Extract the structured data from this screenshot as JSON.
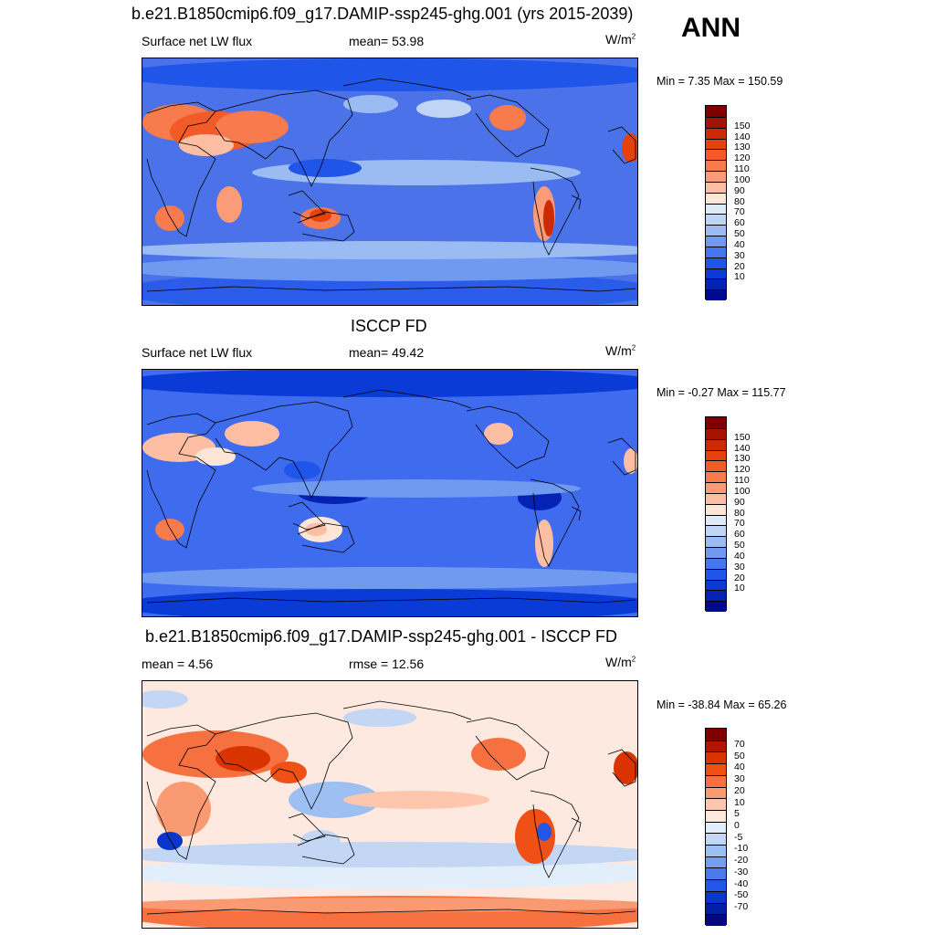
{
  "season": "ANN",
  "panels": [
    {
      "title": "b.e21.B1850cmip6.f09_g17.DAMIP-ssp245-ghg.001 (yrs 2015-2039)",
      "left_text": "Surface net LW flux",
      "center_text": "mean=  53.98",
      "units": "W/m",
      "units_sup": "2",
      "minmax": "Min =   7.35 Max = 150.59",
      "colorbar_labels": [
        "150",
        "140",
        "130",
        "120",
        "110",
        "100",
        "90",
        "80",
        "70",
        "60",
        "50",
        "40",
        "30",
        "20",
        "10"
      ],
      "colorbar_colors": [
        "#7f0000",
        "#a51200",
        "#cc2a00",
        "#e5410b",
        "#f25a28",
        "#f77b4d",
        "#fb9b78",
        "#fdbea3",
        "#fee6d6",
        "#deebf7",
        "#c0d5f5",
        "#9bbbf3",
        "#6f9af0",
        "#4676ee",
        "#1f55e8",
        "#0b3bd6",
        "#0422b4",
        "#000a8e"
      ],
      "colorbar_label_map": "labels sit on boundaries between colors",
      "map_mood": "model"
    },
    {
      "title": "ISCCP FD",
      "left_text": "Surface net LW flux",
      "center_text": "mean=  49.42",
      "units": "W/m",
      "units_sup": "2",
      "minmax": "Min =  -0.27 Max = 115.77",
      "colorbar_labels": [
        "150",
        "140",
        "130",
        "120",
        "110",
        "100",
        "90",
        "80",
        "70",
        "60",
        "50",
        "40",
        "30",
        "20",
        "10"
      ],
      "colorbar_colors": [
        "#7f0000",
        "#a51200",
        "#cc2a00",
        "#e5410b",
        "#f25a28",
        "#f77b4d",
        "#fb9b78",
        "#fdbea3",
        "#fee6d6",
        "#deebf7",
        "#c0d5f5",
        "#9bbbf3",
        "#6f9af0",
        "#4676ee",
        "#1f55e8",
        "#0b3bd6",
        "#0422b4",
        "#000a8e"
      ],
      "map_mood": "obs"
    },
    {
      "title": "b.e21.B1850cmip6.f09_g17.DAMIP-ssp245-ghg.001 - ISCCP FD",
      "left_text": "mean =   4.56",
      "center_text": "rmse =  12.56",
      "units": "W/m",
      "units_sup": "2",
      "minmax": "Min = -38.84 Max =  65.26",
      "colorbar_labels": [
        "70",
        "50",
        "40",
        "30",
        "20",
        "10",
        "5",
        "0",
        "-5",
        "-10",
        "-20",
        "-30",
        "-40",
        "-50",
        "-70"
      ],
      "colorbar_colors": [
        "#7f0000",
        "#b01500",
        "#d93400",
        "#ee5016",
        "#f6713f",
        "#f99a72",
        "#fdc6ad",
        "#fee8dc",
        "#e3eefb",
        "#c3d7f5",
        "#9ebff2",
        "#739ff0",
        "#4a79ee",
        "#2356e6",
        "#0b36cc",
        "#021fa6",
        "#000a80"
      ],
      "map_mood": "diff"
    }
  ]
}
